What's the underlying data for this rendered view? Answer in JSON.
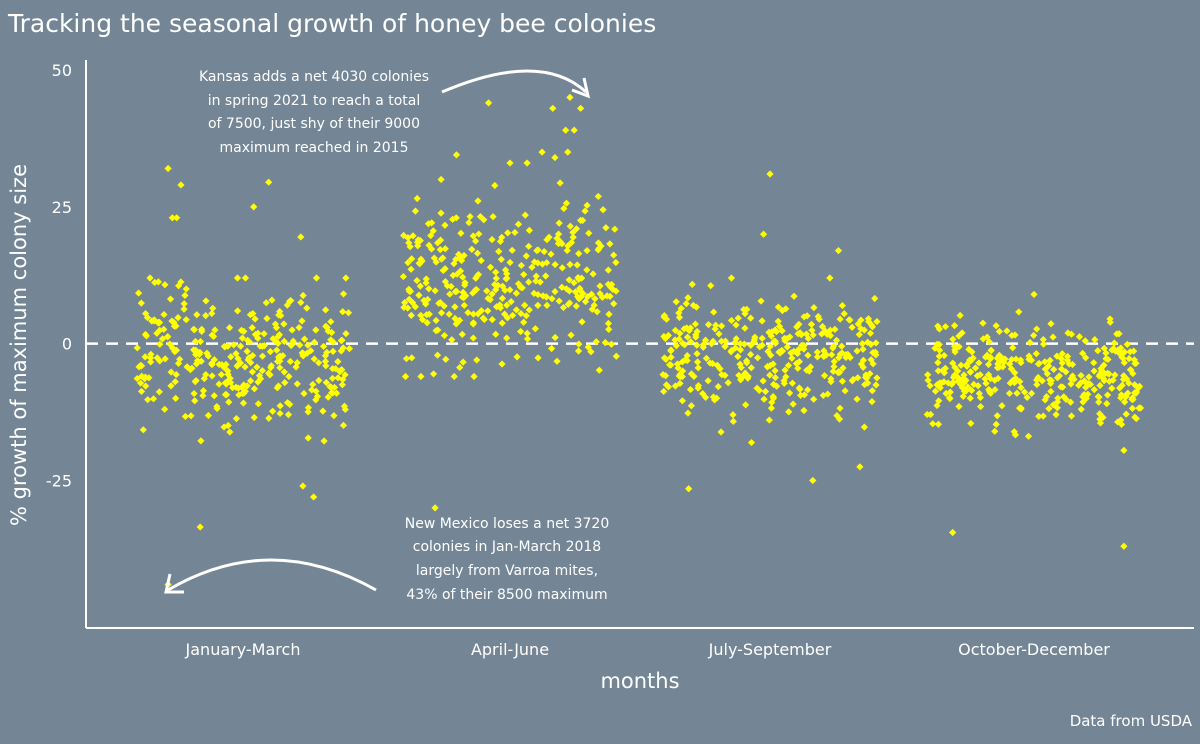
{
  "chart_data": {
    "type": "scatter",
    "title": "Tracking the seasonal growth of honey bee colonies",
    "xlabel": "months",
    "ylabel": "% growth of maximum colony size",
    "categories": [
      "January-March",
      "April-June",
      "July-September",
      "October-December"
    ],
    "ylim": [
      -50,
      52
    ],
    "yticks": [
      50,
      25,
      0,
      -25
    ],
    "ytick_labels": [
      "50",
      "25",
      "0",
      "-25"
    ],
    "reference_line": 0,
    "grid": false,
    "point_color": "#ffff00",
    "group_summary": [
      {
        "center": -2,
        "spread": 6.5,
        "n": 330
      },
      {
        "center": 11,
        "spread": 7.5,
        "n": 330
      },
      {
        "center": -2.5,
        "spread": 5.5,
        "n": 330
      },
      {
        "center": -6,
        "spread": 4.5,
        "n": 330
      }
    ],
    "notable_points": [
      {
        "group": 0,
        "offset": -0.35,
        "y": 32
      },
      {
        "group": 0,
        "offset": -0.33,
        "y": 23
      },
      {
        "group": 0,
        "offset": -0.31,
        "y": 23
      },
      {
        "group": 0,
        "offset": -0.29,
        "y": 29
      },
      {
        "group": 0,
        "offset": 0.12,
        "y": 29.5
      },
      {
        "group": 0,
        "offset": 0.05,
        "y": 25
      },
      {
        "group": 0,
        "offset": 0.27,
        "y": 19.5
      },
      {
        "group": 0,
        "offset": -0.35,
        "y": -44
      },
      {
        "group": 0,
        "offset": -0.2,
        "y": -33.5
      },
      {
        "group": 0,
        "offset": 0.33,
        "y": -28
      },
      {
        "group": 0,
        "offset": 0.28,
        "y": -26
      },
      {
        "group": 1,
        "offset": -0.35,
        "y": -30
      },
      {
        "group": 1,
        "offset": -0.1,
        "y": 44
      },
      {
        "group": 1,
        "offset": 0.28,
        "y": 45
      },
      {
        "group": 1,
        "offset": 0.2,
        "y": 43
      },
      {
        "group": 1,
        "offset": 0.33,
        "y": 43
      },
      {
        "group": 1,
        "offset": 0.3,
        "y": 39
      },
      {
        "group": 1,
        "offset": 0.26,
        "y": 39
      },
      {
        "group": 1,
        "offset": 0.27,
        "y": 35
      },
      {
        "group": 1,
        "offset": 0.15,
        "y": 35
      },
      {
        "group": 1,
        "offset": 0.21,
        "y": 34
      },
      {
        "group": 1,
        "offset": -0.25,
        "y": 34.5
      },
      {
        "group": 1,
        "offset": 0.0,
        "y": 33
      },
      {
        "group": 1,
        "offset": 0.08,
        "y": 33
      },
      {
        "group": 2,
        "offset": 0.0,
        "y": 31
      },
      {
        "group": 2,
        "offset": -0.03,
        "y": 20
      },
      {
        "group": 2,
        "offset": 0.32,
        "y": 17
      },
      {
        "group": 2,
        "offset": -0.38,
        "y": -26.5
      },
      {
        "group": 2,
        "offset": 0.2,
        "y": -25
      },
      {
        "group": 2,
        "offset": 0.42,
        "y": -22.5
      },
      {
        "group": 3,
        "offset": -0.38,
        "y": -34.5
      },
      {
        "group": 3,
        "offset": 0.42,
        "y": -37
      },
      {
        "group": 3,
        "offset": 0.0,
        "y": 9
      }
    ],
    "annotations": [
      {
        "text_lines": [
          "Kansas adds a net 4030 colonies",
          "in spring 2021 to reach a total",
          "of 7500, just shy of their 9000",
          "maximum reached in 2015"
        ]
      },
      {
        "text_lines": [
          "New Mexico loses a net 3720",
          "colonies in Jan-March 2018",
          "largely from Varroa mites,",
          "43% of their 8500 maximum"
        ]
      }
    ],
    "source": "Data from USDA"
  }
}
